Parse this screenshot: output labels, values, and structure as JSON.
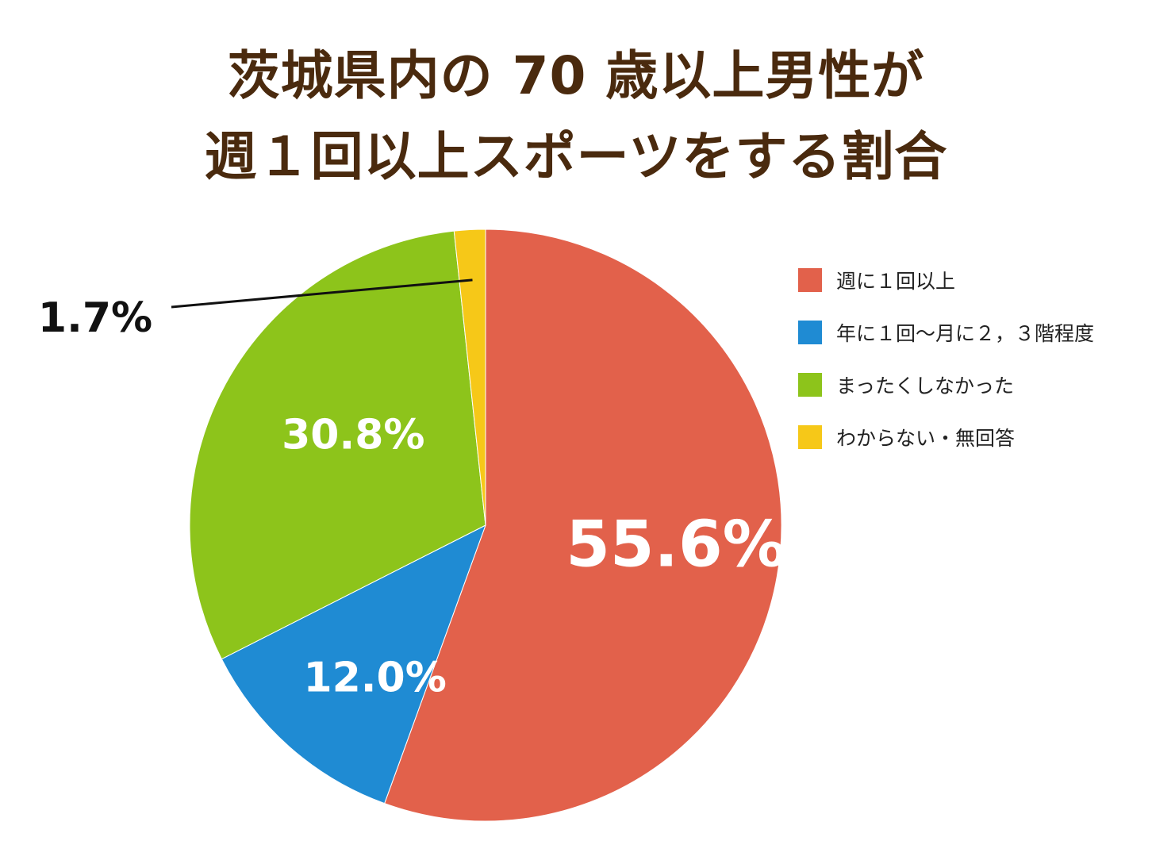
{
  "chart_data": {
    "type": "pie",
    "title_line_1": "茨城県内の 70 歳以上男性が",
    "title_line_2": "週１回以上スポーツをする割合",
    "start_angle_deg": 0,
    "direction": "clockwise",
    "slices": [
      {
        "label": "週に１回以上",
        "value": 55.6,
        "display": "55.6%",
        "color": "#e2614b",
        "label_color": "#ffffff"
      },
      {
        "label": "年に１回〜月に２，３階程度",
        "value": 12.0,
        "display": "12.0%",
        "color": "#1f8bd3",
        "label_color": "#ffffff"
      },
      {
        "label": "まったくしなかった",
        "value": 30.8,
        "display": "30.8%",
        "color": "#8dc41b",
        "label_color": "#ffffff"
      },
      {
        "label": "わからない・無回答",
        "value": 1.7,
        "display": "1.7%",
        "color": "#f6c818",
        "label_color": "#111111"
      }
    ],
    "legend_position": "right"
  }
}
